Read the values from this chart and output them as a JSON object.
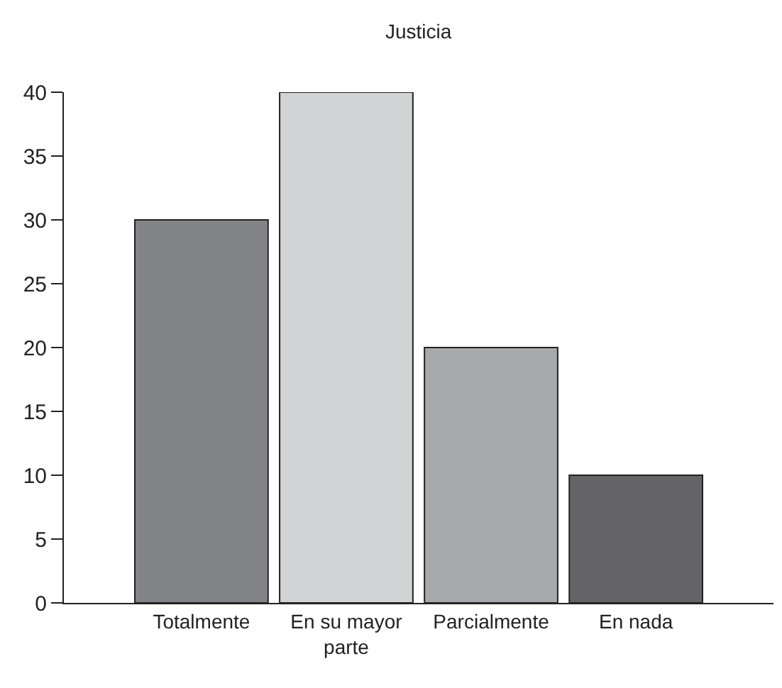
{
  "chart_data": {
    "type": "bar",
    "title": "Justicia",
    "categories": [
      "Totalmente",
      "En su mayor parte",
      "Parcialmente",
      "En nada"
    ],
    "values": [
      30,
      40,
      20,
      10
    ],
    "colors": [
      "#838488",
      "#d2d3d5",
      "#a8a9ac",
      "#646466"
    ],
    "ylim": [
      0,
      40
    ],
    "yticks": [
      0,
      5,
      10,
      15,
      20,
      25,
      30,
      35,
      40
    ],
    "legend": false
  }
}
